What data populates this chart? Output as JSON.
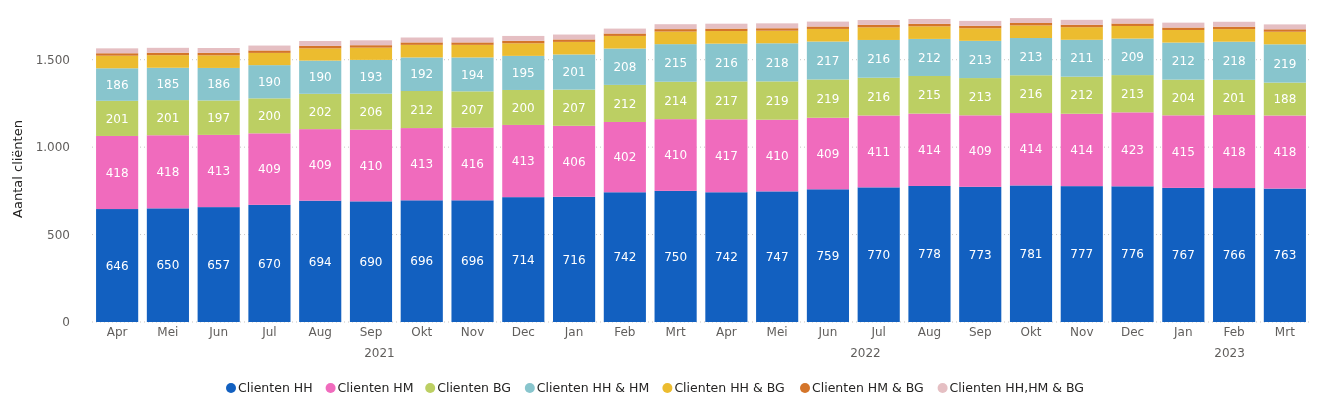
{
  "chart_data": {
    "type": "bar",
    "stacked": true,
    "ylabel": "Aantal cliënten",
    "categories": [
      "Apr",
      "Mei",
      "Jun",
      "Jul",
      "Aug",
      "Sep",
      "Okt",
      "Nov",
      "Dec",
      "Jan",
      "Feb",
      "Mrt",
      "Apr",
      "Mei",
      "Jun",
      "Jul",
      "Aug",
      "Sep",
      "Okt",
      "Nov",
      "Dec",
      "Jan",
      "Feb",
      "Mrt"
    ],
    "annotations": [
      "2021",
      "2022",
      "2023"
    ],
    "ylim": [
      0,
      1750
    ],
    "yticks": [
      0,
      500,
      {
        "value": 1000,
        "label": "1.000"
      },
      {
        "value": 1500,
        "label": "1.500"
      }
    ],
    "grid": "y",
    "legend": "bottom",
    "series": [
      {
        "name": "Clienten HH",
        "color": "#1260c0",
        "values": [
          646,
          650,
          657,
          670,
          694,
          690,
          696,
          696,
          714,
          716,
          742,
          750,
          742,
          747,
          759,
          770,
          778,
          773,
          781,
          777,
          776,
          767,
          766,
          763
        ],
        "value_labels": [
          "646",
          "650",
          "657",
          "670",
          "694",
          "690",
          "696",
          "696",
          "714",
          "716",
          "742",
          "750",
          "742",
          "747",
          "759",
          "770",
          "778",
          "773",
          "781",
          "777",
          "776",
          "767",
          "766",
          "763"
        ]
      },
      {
        "name": "Clienten HM",
        "color": "#f06bbd",
        "values": [
          418,
          418,
          413,
          409,
          409,
          410,
          413,
          416,
          413,
          406,
          402,
          410,
          417,
          410,
          409,
          411,
          414,
          409,
          414,
          414,
          423,
          415,
          418,
          418
        ],
        "value_labels": [
          "418",
          "418",
          "413",
          "409",
          "409",
          "410",
          "413",
          "416",
          "413",
          "406",
          "402",
          "410",
          "417",
          "410",
          "409",
          "411",
          "414",
          "409",
          "414",
          "414",
          "423",
          "415",
          "418",
          "418"
        ]
      },
      {
        "name": "Clienten BG",
        "color": "#bccf63",
        "values": [
          201,
          201,
          197,
          200,
          202,
          206,
          212,
          207,
          200,
          207,
          212,
          214,
          217,
          219,
          219,
          216,
          215,
          213,
          216,
          212,
          213,
          204,
          201,
          188
        ],
        "value_labels": [
          "201",
          "201",
          "197",
          "200",
          "202",
          "206",
          "212",
          "207",
          "200",
          "207",
          "212",
          "214",
          "217",
          "219",
          "219",
          "216",
          "215",
          "213",
          "216",
          "212",
          "213",
          "204",
          "201",
          "188"
        ]
      },
      {
        "name": "Clienten HH & HM",
        "color": "#88c5cd",
        "values": [
          186,
          185,
          186,
          190,
          190,
          193,
          192,
          194,
          195,
          201,
          208,
          215,
          216,
          218,
          217,
          216,
          212,
          213,
          213,
          211,
          209,
          212,
          218,
          219
        ],
        "value_labels": [
          "186",
          "185",
          "186",
          "190",
          "190",
          "193",
          "192",
          "194",
          "195",
          "201",
          "208",
          "215",
          "216",
          "218",
          "217",
          "216",
          "212",
          "213",
          "213",
          "211",
          "209",
          "212",
          "218",
          "219"
        ]
      },
      {
        "name": "Clienten HH & BG",
        "color": "#ecbc2f",
        "values": [
          72,
          72,
          72,
          70,
          70,
          70,
          72,
          72,
          72,
          72,
          72,
          72,
          72,
          72,
          72,
          72,
          72,
          72,
          72,
          72,
          72,
          72,
          72,
          72
        ]
      },
      {
        "name": "Clienten HM & BG",
        "color": "#d4752a",
        "values": [
          14,
          14,
          14,
          14,
          14,
          14,
          14,
          14,
          14,
          14,
          14,
          14,
          14,
          14,
          14,
          14,
          14,
          14,
          14,
          14,
          14,
          14,
          14,
          14
        ]
      },
      {
        "name": "Clienten HH,HM & BG",
        "color": "#e5bfc3",
        "values": [
          28,
          28,
          28,
          28,
          28,
          28,
          28,
          28,
          28,
          28,
          28,
          28,
          28,
          28,
          28,
          28,
          28,
          28,
          28,
          28,
          28,
          28,
          28,
          28
        ]
      }
    ]
  }
}
